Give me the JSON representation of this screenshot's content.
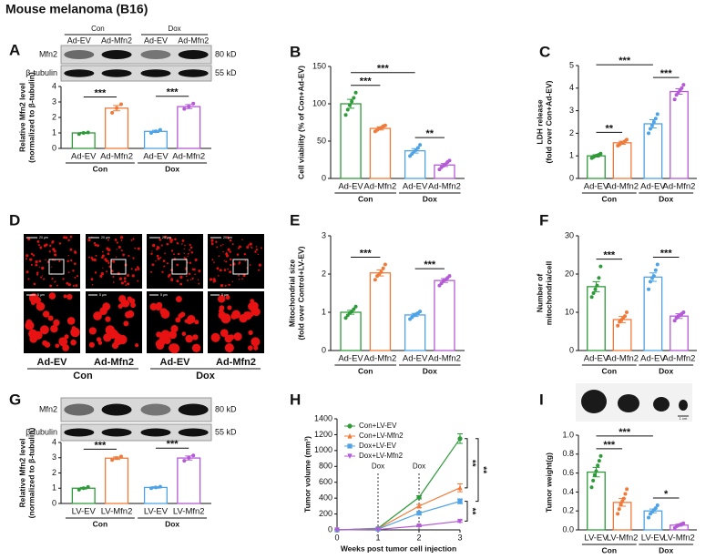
{
  "title": "Mouse melanoma (B16)",
  "panel_labels": [
    "A",
    "B",
    "C",
    "D",
    "E",
    "F",
    "G",
    "H",
    "I"
  ],
  "blots": [
    {
      "groups": [
        "Con",
        "Dox"
      ],
      "lanes": [
        "Ad-EV",
        "Ad-Mfn2",
        "Ad-EV",
        "Ad-Mfn2"
      ],
      "rows": [
        {
          "name": "Mfn2",
          "size": "80 kD"
        },
        {
          "name": "β-tubulin",
          "size": "55 kD"
        }
      ]
    },
    {
      "rows": [
        {
          "name": "Mfn2",
          "size": "80 kD"
        },
        {
          "name": "β-tubulin",
          "size": "55 kD"
        }
      ]
    }
  ],
  "images": {
    "lanes": [
      "Ad-EV",
      "Ad-Mfn2",
      "Ad-EV",
      "Ad-Mfn2"
    ],
    "groups": [
      "Con",
      "Dox"
    ],
    "scale_top": "20 µm",
    "scale_bottom": "5 µm"
  },
  "tumor_scale": "1 cm",
  "chart_data": [
    {
      "type": "bar",
      "ylabel": [
        "Relative Mfn2 level",
        "(normalized to β-tubulin)"
      ],
      "ylim": [
        0,
        4
      ],
      "yticks": [
        0,
        1,
        2,
        3,
        4
      ],
      "categories": [
        "Ad-EV",
        "Ad-Mfn2",
        "Ad-EV",
        "Ad-Mfn2"
      ],
      "groups": [
        "Con",
        "Dox"
      ],
      "colors": [
        "#2e9a3a",
        "#f07a3a",
        "#4ea3e6",
        "#b45ad6"
      ],
      "values": [
        1.0,
        2.6,
        1.1,
        2.7
      ],
      "errors": [
        0.04,
        0.17,
        0.07,
        0.13
      ],
      "points": [
        [
          0.93,
          1.0,
          1.03
        ],
        [
          2.3,
          2.6,
          2.85
        ],
        [
          1.0,
          1.1,
          1.2
        ],
        [
          2.55,
          2.7,
          2.9
        ]
      ],
      "significance": [
        {
          "bars": [
            0,
            1
          ],
          "label": "***"
        },
        {
          "bars": [
            2,
            3
          ],
          "label": "***"
        }
      ]
    },
    {
      "type": "bar",
      "ylabel": [
        "Cell viability (% of Con+Ad-EV)"
      ],
      "ylim": [
        0,
        150
      ],
      "yticks": [
        0,
        50,
        100,
        150
      ],
      "categories": [
        "Ad-EV",
        "Ad-Mfn2",
        "Ad-EV",
        "Ad-Mfn2"
      ],
      "groups": [
        "Con",
        "Dox"
      ],
      "colors": [
        "#2e9a3a",
        "#f07a3a",
        "#4ea3e6",
        "#b45ad6"
      ],
      "values": [
        100,
        67,
        37,
        18
      ],
      "errors": [
        6,
        2,
        3,
        2
      ],
      "points": [
        [
          85,
          92,
          98,
          103,
          108,
          115
        ],
        [
          63,
          65,
          67,
          68,
          70,
          71
        ],
        [
          30,
          33,
          36,
          38,
          41,
          45
        ],
        [
          12,
          15,
          17,
          19,
          22,
          24
        ]
      ],
      "significance": [
        {
          "bars": [
            0,
            1
          ],
          "label": "***"
        },
        {
          "bars": [
            0,
            2
          ],
          "label": "***"
        },
        {
          "bars": [
            2,
            3
          ],
          "label": "**"
        }
      ]
    },
    {
      "type": "bar",
      "ylabel": [
        "LDH release",
        "(fold over Con+Ad-EV)"
      ],
      "ylim": [
        0,
        5
      ],
      "yticks": [
        0,
        1,
        2,
        3,
        4,
        5
      ],
      "categories": [
        "Ad-EV",
        "Ad-Mfn2",
        "Ad-EV",
        "Ad-Mfn2"
      ],
      "groups": [
        "Con",
        "Dox"
      ],
      "colors": [
        "#2e9a3a",
        "#f07a3a",
        "#4ea3e6",
        "#b45ad6"
      ],
      "values": [
        1.0,
        1.58,
        2.42,
        3.85
      ],
      "errors": [
        0.05,
        0.07,
        0.18,
        0.12
      ],
      "points": [
        [
          0.9,
          0.95,
          1.0,
          1.02,
          1.05,
          1.1
        ],
        [
          1.45,
          1.5,
          1.57,
          1.6,
          1.65,
          1.72
        ],
        [
          2.0,
          2.2,
          2.35,
          2.5,
          2.65,
          2.85
        ],
        [
          3.5,
          3.7,
          3.8,
          3.9,
          4.0,
          4.15
        ]
      ],
      "significance": [
        {
          "bars": [
            0,
            1
          ],
          "label": "**"
        },
        {
          "bars": [
            0,
            2
          ],
          "label": "***"
        },
        {
          "bars": [
            2,
            3
          ],
          "label": "***"
        }
      ]
    },
    {
      "type": "bar",
      "ylabel": [
        "Mitochondrial size",
        "(fold over Control+LV-EV)"
      ],
      "ylim": [
        0,
        3
      ],
      "yticks": [
        0,
        1,
        2,
        3
      ],
      "categories": [
        "Ad-EV",
        "Ad-Mfn2",
        "Ad-EV",
        "Ad-Mfn2"
      ],
      "groups": [
        "Con",
        "Dox"
      ],
      "colors": [
        "#2e9a3a",
        "#f07a3a",
        "#4ea3e6",
        "#b45ad6"
      ],
      "values": [
        1.0,
        2.03,
        0.93,
        1.83
      ],
      "errors": [
        0.05,
        0.08,
        0.04,
        0.05
      ],
      "points": [
        [
          0.85,
          0.92,
          0.98,
          1.02,
          1.08,
          1.15
        ],
        [
          1.85,
          1.95,
          2.0,
          2.05,
          2.15,
          2.25
        ],
        [
          0.82,
          0.87,
          0.92,
          0.95,
          0.98,
          1.02
        ],
        [
          1.7,
          1.76,
          1.82,
          1.85,
          1.9,
          1.95
        ]
      ],
      "significance": [
        {
          "bars": [
            0,
            1
          ],
          "label": "***"
        },
        {
          "bars": [
            2,
            3
          ],
          "label": "***"
        }
      ]
    },
    {
      "type": "bar",
      "ylabel": [
        "Number of",
        "mitochondria/cell"
      ],
      "ylim": [
        0,
        30
      ],
      "yticks": [
        0,
        10,
        20,
        30
      ],
      "categories": [
        "Ad-EV",
        "Ad-Mfn2",
        "Ad-EV",
        "Ad-Mfn2"
      ],
      "groups": [
        "Con",
        "Dox"
      ],
      "colors": [
        "#2e9a3a",
        "#f07a3a",
        "#4ea3e6",
        "#b45ad6"
      ],
      "values": [
        16.7,
        8.1,
        19.2,
        9.0
      ],
      "errors": [
        1.3,
        0.8,
        1.1,
        0.6
      ],
      "points": [
        [
          14,
          15,
          16,
          17,
          19,
          22
        ],
        [
          6.5,
          7.5,
          8,
          8.5,
          9,
          10
        ],
        [
          16,
          18,
          19,
          19.5,
          21,
          22.5
        ],
        [
          7.8,
          8.5,
          9,
          9.2,
          9.6,
          10
        ]
      ],
      "significance": [
        {
          "bars": [
            0,
            1
          ],
          "label": "***"
        },
        {
          "bars": [
            2,
            3
          ],
          "label": "***"
        }
      ]
    },
    {
      "type": "bar",
      "ylabel": [
        "Relative Mfn2 level",
        "(normalized to β-tubulin)"
      ],
      "ylim": [
        0,
        4
      ],
      "yticks": [
        0,
        1,
        2,
        3,
        4
      ],
      "categories": [
        "LV-EV",
        "LV-Mfn2",
        "LV-EV",
        "LV-Mfn2"
      ],
      "groups": [
        "Con",
        "Dox"
      ],
      "colors": [
        "#2e9a3a",
        "#f07a3a",
        "#4ea3e6",
        "#b45ad6"
      ],
      "values": [
        1.0,
        2.97,
        1.05,
        2.98
      ],
      "errors": [
        0.05,
        0.08,
        0.05,
        0.13
      ],
      "points": [
        [
          0.9,
          1.0,
          1.08
        ],
        [
          2.85,
          2.98,
          3.08
        ],
        [
          1.0,
          1.05,
          1.1
        ],
        [
          2.8,
          3.0,
          3.15
        ]
      ],
      "significance": [
        {
          "bars": [
            0,
            1
          ],
          "label": "***"
        },
        {
          "bars": [
            2,
            3
          ],
          "label": "***"
        }
      ]
    },
    {
      "type": "line",
      "ylabel": [
        "Tumor volume (mm³)"
      ],
      "xlabel": "Weeks post tumor cell injection",
      "x": [
        0,
        1,
        2,
        3
      ],
      "xlim": [
        0,
        3
      ],
      "xticks": [
        0,
        1,
        2,
        3
      ],
      "ylim": [
        0,
        1400
      ],
      "yticks": [
        0,
        200,
        400,
        600,
        800,
        1000,
        1200,
        1400
      ],
      "legend": "top-left",
      "series": [
        {
          "name": "Con+LV-EV",
          "color": "#2e9a3a",
          "marker": "circle",
          "values": [
            0,
            20,
            410,
            1150
          ],
          "errors": [
            0,
            5,
            20,
            60
          ]
        },
        {
          "name": "Con+LV-Mfn2",
          "color": "#f07a3a",
          "marker": "triangle",
          "values": [
            0,
            15,
            300,
            530
          ],
          "errors": [
            0,
            5,
            20,
            50
          ]
        },
        {
          "name": "Dox+LV-EV",
          "color": "#4ea3e6",
          "marker": "square",
          "values": [
            0,
            10,
            210,
            360
          ],
          "errors": [
            0,
            5,
            15,
            30
          ]
        },
        {
          "name": "Dox+LV-Mfn2",
          "color": "#b45ad6",
          "marker": "triangle-down",
          "values": [
            0,
            5,
            50,
            110
          ],
          "errors": [
            0,
            2,
            10,
            15
          ]
        }
      ],
      "vlines": [
        {
          "x": 1,
          "label": "Dox"
        },
        {
          "x": 2,
          "label": "Dox"
        }
      ],
      "significance": [
        {
          "series": [
            0,
            1
          ],
          "label": "**"
        },
        {
          "series": [
            0,
            2
          ],
          "label": "**"
        },
        {
          "series": [
            2,
            3
          ],
          "label": "**"
        }
      ]
    },
    {
      "type": "bar",
      "ylabel": [
        "Tumor weight(g)"
      ],
      "ylim": [
        0,
        1.0
      ],
      "yticks": [
        {
          "value": 0,
          "label": "0.0"
        },
        {
          "value": 0.2,
          "label": "0.2"
        },
        {
          "value": 0.4,
          "label": "0.4"
        },
        {
          "value": 0.6,
          "label": "0.6"
        },
        {
          "value": 0.8,
          "label": "0.8"
        },
        {
          "value": 1.0,
          "label": "1.0"
        }
      ],
      "categories": [
        "LV-EV",
        "LV-Mfn2",
        "LV-EV",
        "LV-Mfn2"
      ],
      "groups": [
        "Con",
        "Dox"
      ],
      "colors": [
        "#2e9a3a",
        "#f07a3a",
        "#4ea3e6",
        "#b45ad6"
      ],
      "values": [
        0.61,
        0.29,
        0.2,
        0.05
      ],
      "errors": [
        0.05,
        0.04,
        0.02,
        0.01
      ],
      "points": [
        [
          0.45,
          0.52,
          0.58,
          0.62,
          0.68,
          0.73,
          0.78
        ],
        [
          0.17,
          0.22,
          0.27,
          0.3,
          0.33,
          0.38,
          0.43
        ],
        [
          0.13,
          0.17,
          0.19,
          0.21,
          0.23,
          0.26
        ],
        [
          0.02,
          0.04,
          0.05,
          0.06,
          0.07
        ]
      ],
      "significance": [
        {
          "bars": [
            0,
            1
          ],
          "label": "***"
        },
        {
          "bars": [
            0,
            2
          ],
          "label": "***"
        },
        {
          "bars": [
            2,
            3
          ],
          "label": "*"
        }
      ]
    }
  ]
}
